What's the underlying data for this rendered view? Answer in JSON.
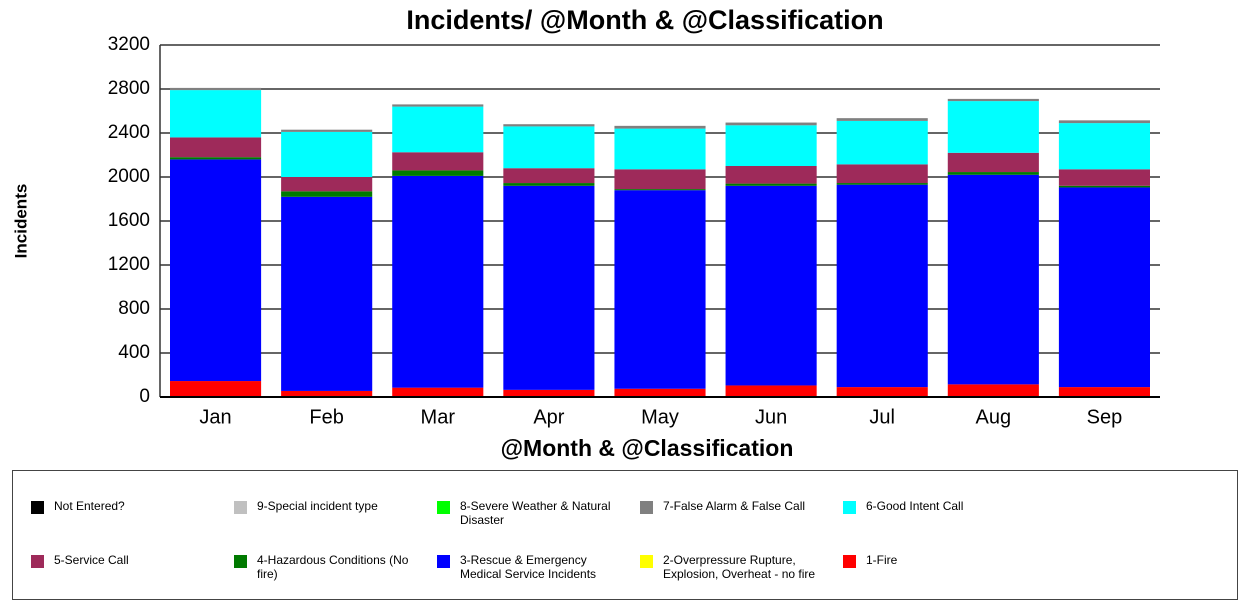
{
  "chart_data": {
    "type": "stacked_bar",
    "title": "Incidents/ @Month & @Classification",
    "x_label": "@Month & @Classification",
    "y_label": "Incidents",
    "categories": [
      "Jan",
      "Feb",
      "Mar",
      "Apr",
      "May",
      "Jun",
      "Jul",
      "Aug",
      "Sep"
    ],
    "series": [
      {
        "name": "1-Fire",
        "color": "#ff0000",
        "values": [
          145,
          55,
          85,
          65,
          75,
          105,
          90,
          115,
          90
        ]
      },
      {
        "name": "2-Overpressure Rupture, Explosion, Overheat - no fire",
        "color": "#ffff00",
        "values": [
          0,
          0,
          0,
          0,
          0,
          0,
          0,
          0,
          0
        ]
      },
      {
        "name": "3-Rescue & Emergency Medical Service Incidents",
        "color": "#0000ff",
        "values": [
          2015,
          1765,
          1925,
          1855,
          1805,
          1815,
          1840,
          1905,
          1815
        ]
      },
      {
        "name": "4-Hazardous Conditions (No fire)",
        "color": "#007a00",
        "values": [
          20,
          50,
          50,
          25,
          10,
          20,
          15,
          25,
          15
        ]
      },
      {
        "name": "5-Service Call",
        "color": "#9e2a5a",
        "values": [
          180,
          130,
          165,
          135,
          180,
          160,
          170,
          175,
          150
        ]
      },
      {
        "name": "6-Good Intent Call",
        "color": "#00ffff",
        "values": [
          430,
          410,
          415,
          380,
          370,
          370,
          395,
          470,
          420
        ]
      },
      {
        "name": "7-False Alarm & False Call",
        "color": "#808080",
        "values": [
          20,
          20,
          20,
          20,
          25,
          25,
          25,
          20,
          25
        ]
      },
      {
        "name": "8-Severe Weather & Natural Disaster",
        "color": "#00ff00",
        "values": [
          0,
          0,
          0,
          0,
          0,
          0,
          0,
          0,
          0
        ]
      },
      {
        "name": "9-Special incident type",
        "color": "#c0c0c0",
        "values": [
          0,
          0,
          0,
          0,
          0,
          0,
          0,
          0,
          0
        ]
      },
      {
        "name": "Not Entered?",
        "color": "#000000",
        "values": [
          0,
          0,
          0,
          0,
          0,
          0,
          0,
          0,
          0
        ]
      }
    ],
    "ylim": [
      0,
      3200
    ],
    "yticks": [
      0,
      400,
      800,
      1200,
      1600,
      2000,
      2400,
      2800,
      3200
    ],
    "grid": true
  }
}
